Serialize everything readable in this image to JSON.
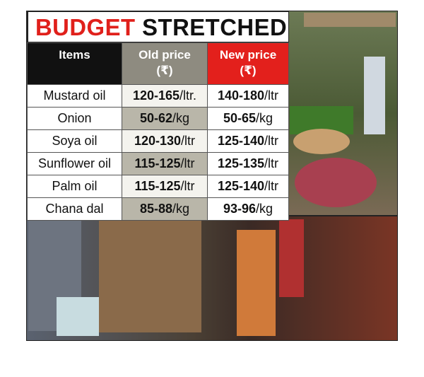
{
  "header": {
    "title": {
      "part1": "BUDGET",
      "part2": "STRETCHED"
    }
  },
  "table": {
    "columns": [
      {
        "label": "Items"
      },
      {
        "label": "Old price",
        "unit": "(₹)"
      },
      {
        "label": "New price",
        "unit": "(₹)"
      }
    ],
    "rows": [
      [
        "Mustard oil",
        {
          "price": "120-165",
          "unit": "/ltr."
        },
        {
          "price": "140-180",
          "unit": "/ltr"
        }
      ],
      [
        "Onion",
        {
          "price": "50-62",
          "unit": "/kg"
        },
        {
          "price": "50-65",
          "unit": "/kg"
        }
      ],
      [
        "Soya oil",
        {
          "price": "120-130",
          "unit": "/ltr"
        },
        {
          "price": "125-140",
          "unit": "/ltr"
        }
      ],
      [
        "Sunflower oil",
        {
          "price": "115-125",
          "unit": "/ltr"
        },
        {
          "price": "125-135",
          "unit": "/ltr"
        }
      ],
      [
        "Palm oil",
        {
          "price": "115-125",
          "unit": "/ltr"
        },
        {
          "price": "125-140",
          "unit": "/ltr"
        }
      ],
      [
        "Chana dal",
        {
          "price": "85-88",
          "unit": "/kg"
        },
        {
          "price": "93-96",
          "unit": "/kg"
        }
      ]
    ]
  }
}
